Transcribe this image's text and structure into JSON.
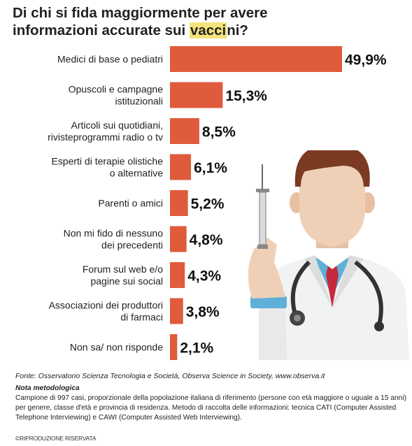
{
  "title_parts": {
    "line1": "Di chi si fida maggiormente per avere",
    "line2_pre": "informazioni accurate sui ",
    "line2_hl": "vacci",
    "line2_post": "ni?"
  },
  "colors": {
    "bar": "#e05b3c",
    "highlight": "#f6e27a"
  },
  "chart_data": {
    "type": "bar",
    "orientation": "horizontal",
    "title": "Di chi si fida maggiormente per avere informazioni accurate sui vaccini?",
    "categories": [
      [
        "Medici di base o pediatri"
      ],
      [
        "Opuscoli e campagne",
        "istituzionali"
      ],
      [
        "Articoli sui quotidiani,",
        "rivisteprogrammi radio o tv"
      ],
      [
        "Esperti di terapie olistiche",
        "o alternative"
      ],
      [
        "Parenti o amici"
      ],
      [
        "Non mi fido di nessuno",
        "dei precedenti"
      ],
      [
        "Forum sul web e/o",
        "pagine sui social"
      ],
      [
        "Associazioni dei produttori",
        "di farmaci"
      ],
      [
        "Non sa/ non risponde"
      ]
    ],
    "values": [
      49.9,
      15.3,
      8.5,
      6.1,
      5.2,
      4.8,
      4.3,
      3.8,
      2.1
    ],
    "value_labels": [
      "49,9%",
      "15,3%",
      "8,5%",
      "6,1%",
      "5,2%",
      "4,8%",
      "4,3%",
      "3,8%",
      "2,1%"
    ]
  },
  "source": "Fonte: Osservatorio Scienza Tecnologia e Società, Observa Science in Society, www.observa.it",
  "notes_title": "Nota metodologica",
  "notes_text": "Campione di 997 casi, proporzionale della popolazione italiana di riferimento (persone con età maggiore o uguale a 15 anni) per genere, classe d'età e provincia di residenza. Metodo di raccolta delle informazioni: tecnica CATI (Computer Assisted Telephone Interviewing) e CAWI (Computer Assisted Web Interviewing).",
  "copyright": "©RIPRODUZIONE RISERVATA",
  "illustration": "doctor-with-syringe-icon"
}
